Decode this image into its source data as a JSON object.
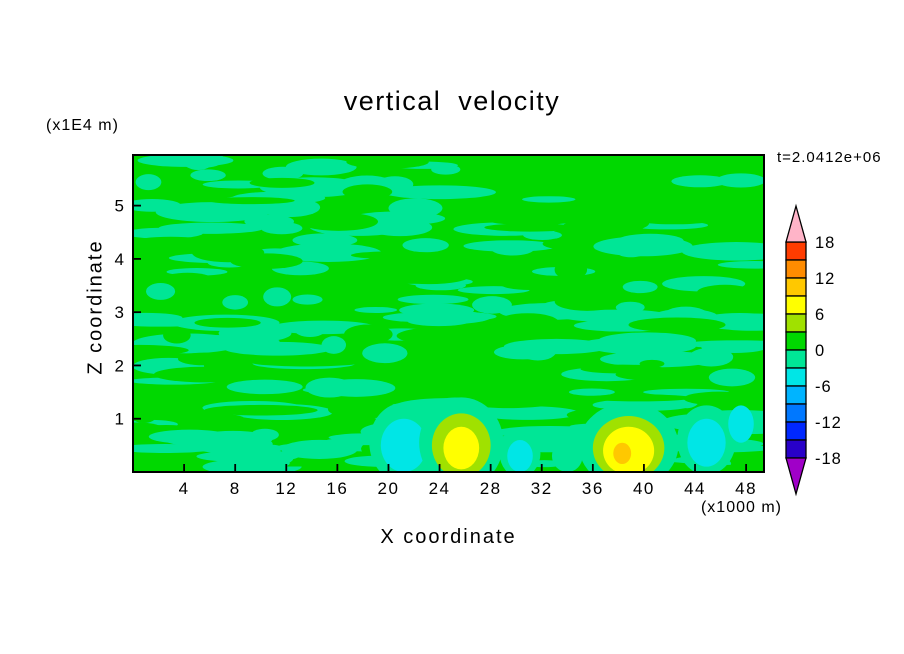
{
  "title": "vertical velocity",
  "time_annotation": "t=2.0412e+06",
  "axis": {
    "x_label": "X coordinate",
    "x_unit_label": "(x1000 m)",
    "y_label": "Z coordinate",
    "y_unit_label": "(x1E4 m)"
  },
  "chart_data": {
    "type": "heatmap",
    "subtype": "filled-contour",
    "title": "vertical velocity",
    "xlabel": "X coordinate (x1000 m)",
    "ylabel": "Z coordinate (x1E4 m)",
    "time_label": "t=2.0412e+06",
    "x_range": [
      0,
      49.4
    ],
    "y_range": [
      0,
      5.95
    ],
    "x_ticks": [
      4,
      8,
      12,
      16,
      20,
      24,
      28,
      32,
      36,
      40,
      44,
      48
    ],
    "y_ticks": [
      1,
      2,
      3,
      4,
      5
    ],
    "grid": false,
    "legend_position": "right-colorbar",
    "contour_interval": 3,
    "levels": [
      -18,
      -15,
      -12,
      -9,
      -6,
      -3,
      0,
      3,
      6,
      9,
      12,
      15,
      18
    ],
    "colorbar_tick_labels": [
      "18",
      "12",
      "6",
      "0",
      "-6",
      "-12",
      "-18"
    ],
    "palette": {
      "below_color": "#a000c8",
      "above_color": "#ffb4c8",
      "colors": [
        "#2800c8",
        "#0028ff",
        "#0078ff",
        "#00b4ff",
        "#00e6e6",
        "#00e696",
        "#00d800",
        "#a0e100",
        "#ffff00",
        "#ffc800",
        "#ff8c00",
        "#ff3c00"
      ]
    },
    "field_summary": "vertical velocity field is mostly weak (-3 to +3), shown as a two-tone green mottle of horizontal streaks; small near-surface updraft cells (yellow, +6 to +12) near x=25.7 and x=38.8, and weak downdraft patches (cyan, -6 to -3) near x=21, 30, 45",
    "background_values": [
      1.5,
      -1.5
    ],
    "features": [
      {
        "x": 21.2,
        "z": 0.55,
        "rx": 2.7,
        "rz": 0.75,
        "w": -1.5
      },
      {
        "x": 21.2,
        "z": 0.5,
        "rx": 1.8,
        "rz": 0.5,
        "w": -4
      },
      {
        "x": 25.7,
        "z": 0.55,
        "rx": 3.3,
        "rz": 0.85,
        "w": -1.5
      },
      {
        "x": 25.7,
        "z": 0.5,
        "rx": 2.3,
        "rz": 0.6,
        "w": 4.5
      },
      {
        "x": 25.7,
        "z": 0.45,
        "rx": 1.4,
        "rz": 0.4,
        "w": 7.5
      },
      {
        "x": 30.3,
        "z": 0.35,
        "rx": 1.6,
        "rz": 0.45,
        "w": -1.5
      },
      {
        "x": 30.3,
        "z": 0.3,
        "rx": 1.0,
        "rz": 0.3,
        "w": -4
      },
      {
        "x": 34.0,
        "z": 0.3,
        "rx": 1.2,
        "rz": 0.3,
        "w": -1.5
      },
      {
        "x": 38.8,
        "z": 0.5,
        "rx": 3.9,
        "rz": 0.8,
        "w": -1.5
      },
      {
        "x": 38.8,
        "z": 0.45,
        "rx": 2.8,
        "rz": 0.6,
        "w": 4.5
      },
      {
        "x": 38.8,
        "z": 0.4,
        "rx": 2.0,
        "rz": 0.45,
        "w": 7.5
      },
      {
        "x": 38.3,
        "z": 0.35,
        "rx": 0.7,
        "rz": 0.2,
        "w": 10.5
      },
      {
        "x": 44.9,
        "z": 0.6,
        "rx": 2.3,
        "rz": 0.65,
        "w": -1.5
      },
      {
        "x": 44.9,
        "z": 0.55,
        "rx": 1.5,
        "rz": 0.45,
        "w": -4
      },
      {
        "x": 47.6,
        "z": 0.9,
        "rx": 1.0,
        "rz": 0.35,
        "w": -4
      }
    ],
    "noise": {
      "seed": 20,
      "primary_streaks": 150,
      "secondary_streaks": 70,
      "bottom_extra": 22
    }
  }
}
